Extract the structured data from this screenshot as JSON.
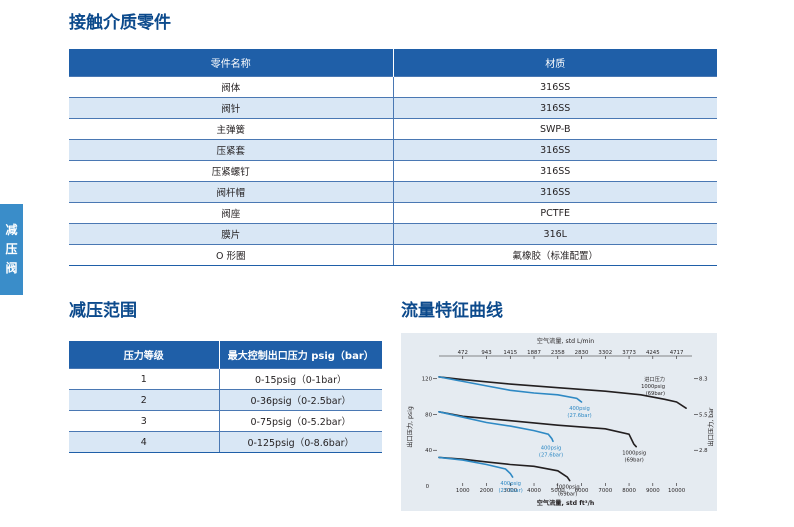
{
  "side_tab": [
    "减",
    "压",
    "阀"
  ],
  "parts": {
    "title": "接触介质零件",
    "headers": [
      "零件名称",
      "材质"
    ],
    "rows": [
      [
        "阀体",
        "316SS"
      ],
      [
        "阀针",
        "316SS"
      ],
      [
        "主弹簧",
        "SWP-B"
      ],
      [
        "压紧套",
        "316SS"
      ],
      [
        "压紧螺钉",
        "316SS"
      ],
      [
        "阀杆帽",
        "316SS"
      ],
      [
        "阀座",
        "PCTFE"
      ],
      [
        "膜片",
        "316L"
      ],
      [
        "O 形圈",
        "氟橡胶（标准配置）"
      ]
    ]
  },
  "range": {
    "title": "减压范围",
    "headers": [
      "压力等级",
      "最大控制出口压力 psig（bar）"
    ],
    "rows": [
      [
        "1",
        "0-15psig（0-1bar）"
      ],
      [
        "2",
        "0-36psig（0-2.5bar）"
      ],
      [
        "3",
        "0-75psig（0-5.2bar）"
      ],
      [
        "4",
        "0-125psig（0-8.6bar）"
      ]
    ]
  },
  "flow": {
    "title": "流量特征曲线",
    "chart_data": {
      "type": "line",
      "x_label": "空气流量, std ft³/h",
      "x_top_label": "空气流量, std L/min",
      "x_ticks": [
        1000,
        2000,
        3000,
        4000,
        5000,
        6000,
        7000,
        8000,
        9000,
        10000
      ],
      "x_top_ticks": [
        "472",
        "943",
        "1415",
        "1887",
        "2358",
        "2830",
        "3302",
        "3773",
        "4245",
        "4717"
      ],
      "xlim": [
        0,
        10650
      ],
      "y_label": "出口压力, psig",
      "y_ticks": [
        0,
        40,
        80,
        120
      ],
      "ylim": [
        0,
        132
      ],
      "y_right_label": "出口压力, bar",
      "y_right_ticks": [
        "2.8",
        "5.5",
        "8.3"
      ],
      "legend": {
        "title": "进口压力",
        "lines": [
          "1000psig",
          "(69bar)"
        ]
      },
      "series": [
        {
          "name": "1000psig (69bar)",
          "color": "#231f20",
          "label_lines": [],
          "points": [
            [
              0,
              122
            ],
            [
              1000,
              119
            ],
            [
              3000,
              114
            ],
            [
              5000,
              110
            ],
            [
              7000,
              106
            ],
            [
              8500,
              102
            ],
            [
              9500,
              97
            ],
            [
              10000,
              94
            ],
            [
              10400,
              87
            ]
          ]
        },
        {
          "name": "400psig (27.6bar)",
          "color": "#2e89c4",
          "label_lines": [
            "400psig",
            "(27.6bar)"
          ],
          "points": [
            [
              0,
              122
            ],
            [
              1000,
              117
            ],
            [
              2000,
              112
            ],
            [
              3000,
              107
            ],
            [
              4000,
              104
            ],
            [
              5000,
              102
            ],
            [
              5800,
              98
            ],
            [
              6000,
              94
            ]
          ]
        },
        {
          "name": "1000psig (69bar)",
          "color": "#231f20",
          "label_lines": [
            "1000psig",
            "(69bar)"
          ],
          "points": [
            [
              0,
              83
            ],
            [
              1000,
              78
            ],
            [
              3000,
              73
            ],
            [
              5000,
              68
            ],
            [
              7000,
              64
            ],
            [
              8000,
              58
            ],
            [
              8200,
              47
            ],
            [
              8300,
              44
            ]
          ]
        },
        {
          "name": "400psig (27.6bar)",
          "color": "#2e89c4",
          "label_lines": [
            "400psig",
            "(27.6bar)"
          ],
          "points": [
            [
              0,
              83
            ],
            [
              1000,
              77
            ],
            [
              2000,
              71
            ],
            [
              3000,
              67
            ],
            [
              4000,
              62
            ],
            [
              4600,
              58
            ],
            [
              4750,
              53
            ],
            [
              4800,
              50
            ]
          ]
        },
        {
          "name": "1000psig (69bar)",
          "color": "#231f20",
          "label_lines": [
            "1000psig",
            "(69bar)"
          ],
          "points": [
            [
              0,
              32
            ],
            [
              1000,
              30
            ],
            [
              2000,
              27
            ],
            [
              3000,
              24
            ],
            [
              4000,
              22
            ],
            [
              5000,
              17
            ],
            [
              5400,
              10
            ],
            [
              5500,
              6
            ]
          ]
        },
        {
          "name": "400psig (27.6bar)",
          "color": "#2e89c4",
          "label_lines": [
            "400psig",
            "(27.6bar)"
          ],
          "points": [
            [
              0,
              32
            ],
            [
              1000,
              29
            ],
            [
              2000,
              24
            ],
            [
              2800,
              19
            ],
            [
              3000,
              14
            ],
            [
              3100,
              10
            ]
          ]
        }
      ]
    }
  }
}
